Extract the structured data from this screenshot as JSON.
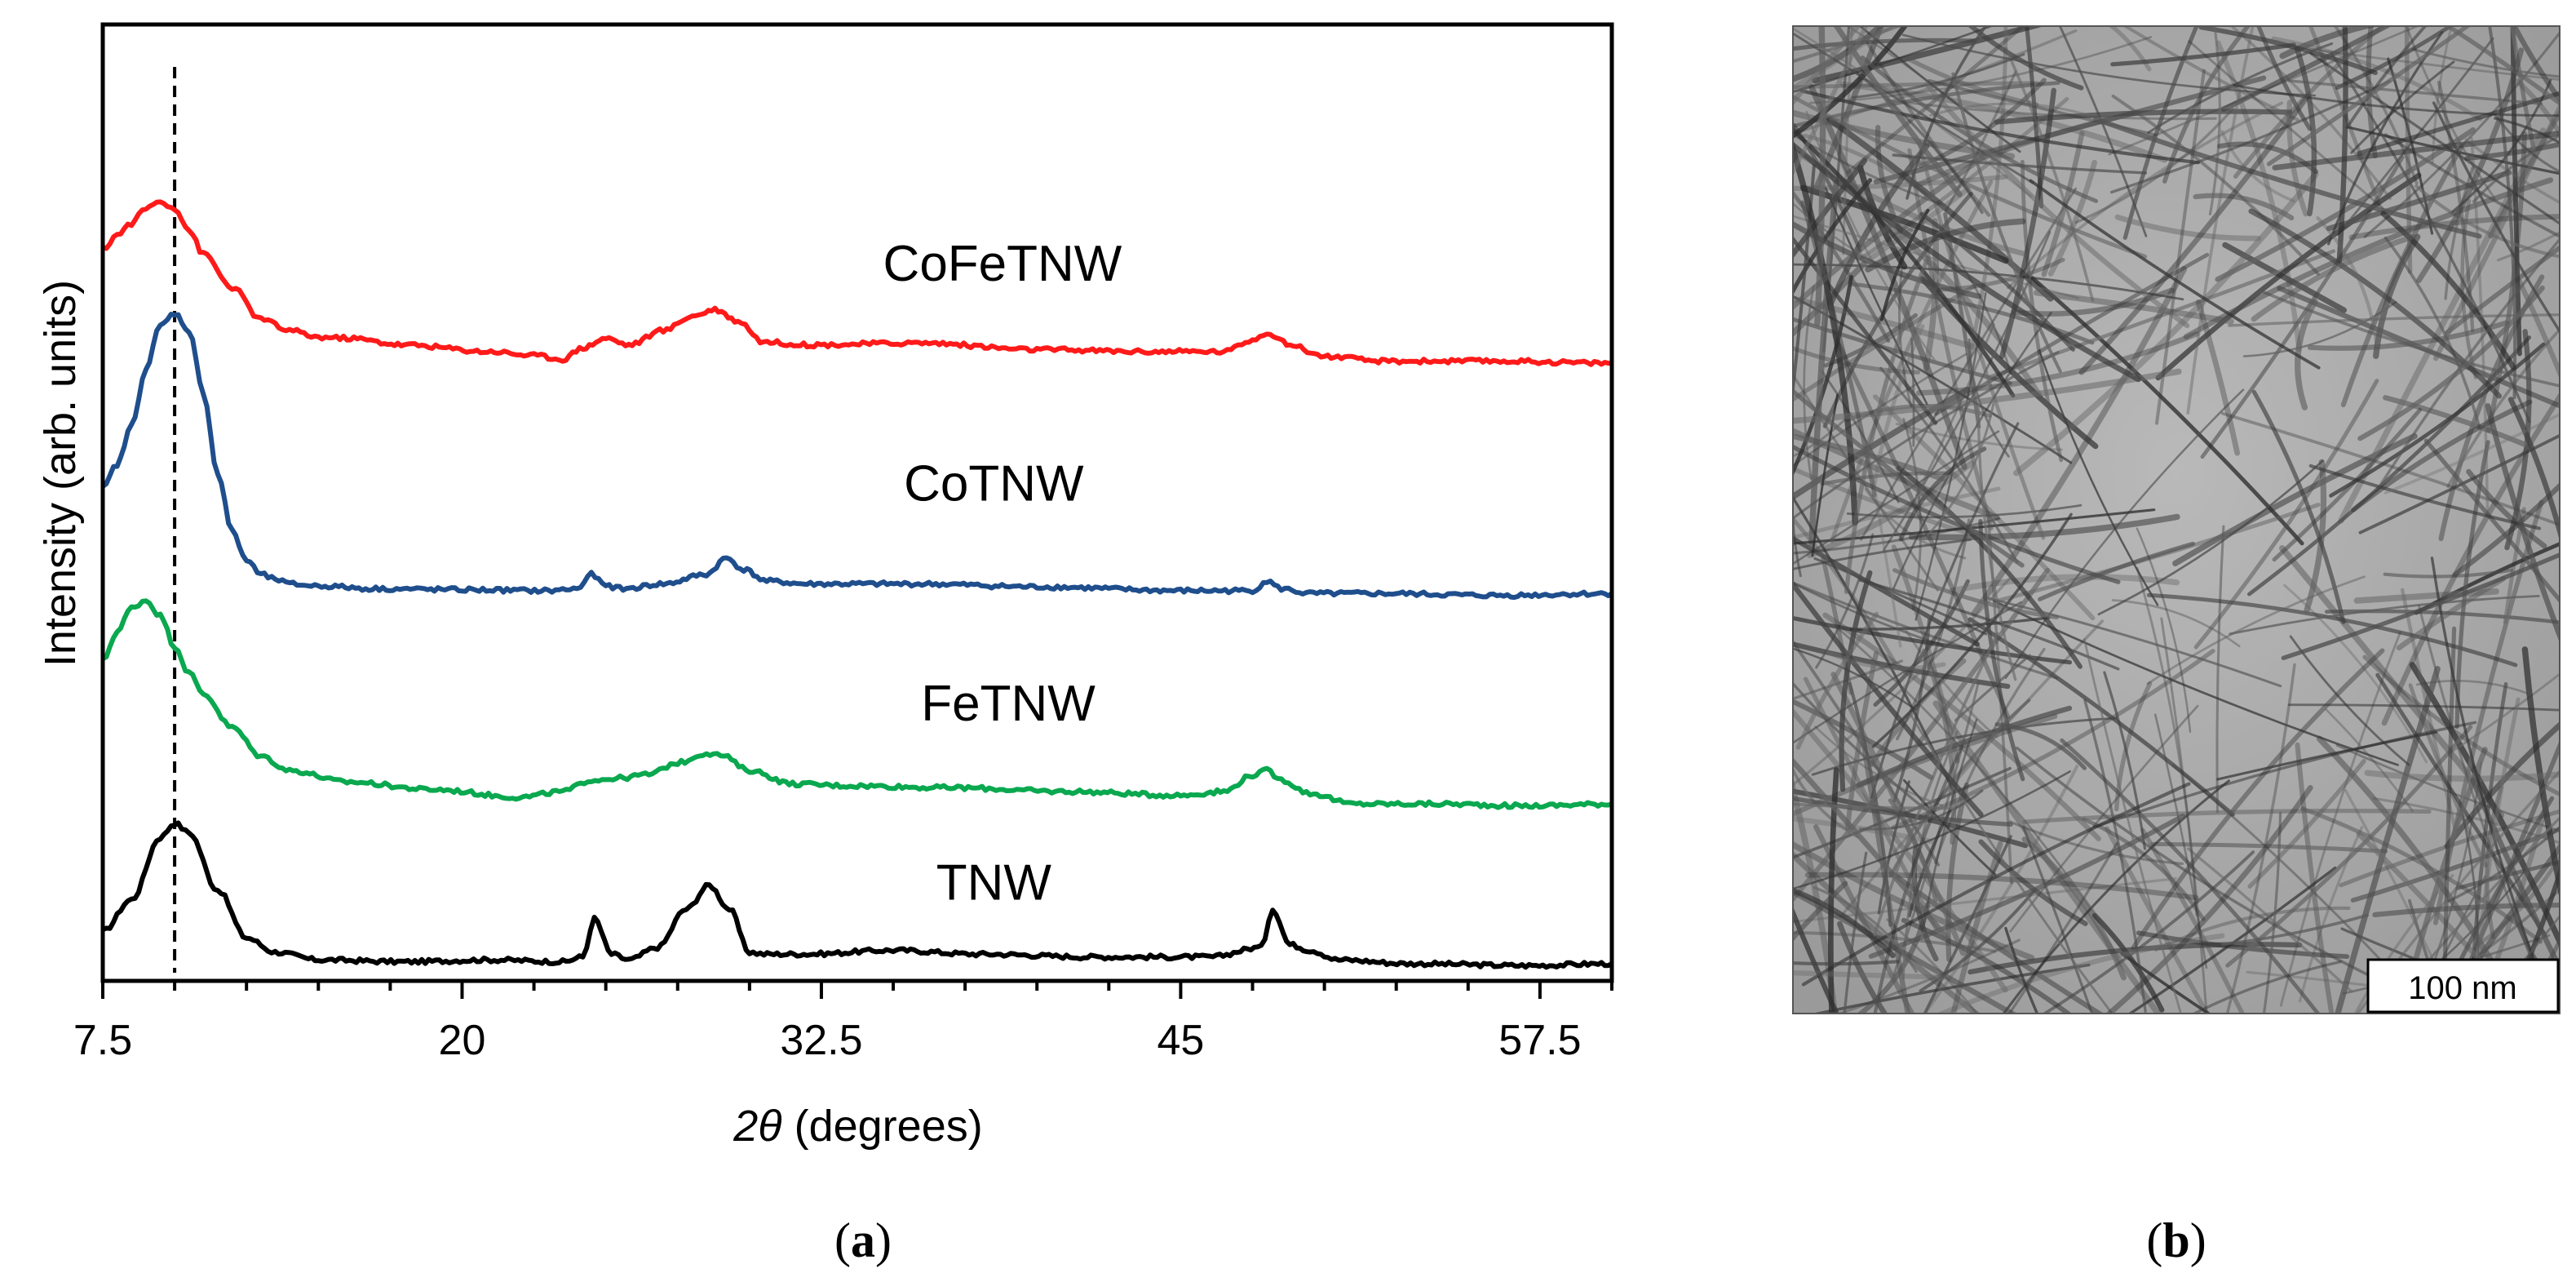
{
  "chart_data": {
    "type": "line",
    "title": "",
    "xlabel_symbol": "2θ",
    "xlabel_unit": " (degrees)",
    "ylabel": "Intensity (arb. units)",
    "xlim": [
      7.5,
      60.0
    ],
    "ylim": [
      0,
      100
    ],
    "xticks": [
      "7.5",
      "20",
      "32.5",
      "45",
      "57.5"
    ],
    "xtick_values": [
      7.5,
      20,
      32.5,
      45,
      57.5
    ],
    "minor_tick_step": 2.5,
    "reference_line_x": 10.0,
    "series": [
      {
        "name": "TNW",
        "color": "#000000",
        "label_x": 38.5,
        "label_y": 8.5,
        "x": [
          7.5,
          8.5,
          9.5,
          10.0,
          10.5,
          11.5,
          12.5,
          13.5,
          15.0,
          18.0,
          21.0,
          23.5,
          24.2,
          24.6,
          25.2,
          25.8,
          26.8,
          27.8,
          28.6,
          29.3,
          30.0,
          30.5,
          32.0,
          35.0,
          38.0,
          42.0,
          46.0,
          47.8,
          48.2,
          48.8,
          49.5,
          50.5,
          53.0,
          57.0,
          60.0
        ],
        "y": [
          5.2,
          8.5,
          15.0,
          16.5,
          15.5,
          9.5,
          4.5,
          3.0,
          2.2,
          2.0,
          2.2,
          2.0,
          2.5,
          6.5,
          2.8,
          2.2,
          3.5,
          7.5,
          10.0,
          7.5,
          3.0,
          2.8,
          2.8,
          3.2,
          2.8,
          2.5,
          2.5,
          3.5,
          7.5,
          3.8,
          3.2,
          2.2,
          1.8,
          1.6,
          1.8
        ]
      },
      {
        "name": "FeTNW",
        "color": "#0aa84f",
        "label_x": 39.0,
        "label_y": 27.2,
        "x": [
          7.5,
          8.0,
          8.5,
          9.0,
          9.5,
          10.0,
          10.5,
          11.0,
          12.0,
          13.0,
          14.0,
          16.0,
          19.0,
          22.0,
          23.5,
          24.5,
          25.5,
          26.5,
          27.5,
          28.5,
          29.0,
          30.0,
          31.5,
          33.5,
          37.0,
          41.0,
          45.0,
          46.5,
          47.5,
          48.0,
          48.5,
          49.5,
          51.0,
          54.0,
          57.0,
          60.0
        ],
        "y": [
          33.5,
          36.5,
          39.0,
          39.8,
          38.2,
          35.0,
          32.2,
          30.0,
          26.5,
          23.5,
          22.0,
          20.8,
          20.0,
          19.2,
          19.8,
          21.0,
          21.2,
          21.6,
          22.8,
          23.8,
          23.6,
          22.0,
          20.6,
          20.4,
          20.2,
          19.8,
          19.4,
          19.8,
          21.5,
          22.0,
          21.0,
          19.6,
          18.5,
          18.5,
          18.3,
          18.5
        ]
      },
      {
        "name": "CoTNW",
        "color": "#1f4e8c",
        "label_x": 38.5,
        "label_y": 50.2,
        "x": [
          7.5,
          8.0,
          8.5,
          9.0,
          9.5,
          10.0,
          10.5,
          11.0,
          11.5,
          12.0,
          12.5,
          13.0,
          13.5,
          14.0,
          15.0,
          17.0,
          20.0,
          23.0,
          24.0,
          24.5,
          25.0,
          25.6,
          27.0,
          28.5,
          29.2,
          29.8,
          30.6,
          32.0,
          36.0,
          40.0,
          45.0,
          47.5,
          48.0,
          48.5,
          49.5,
          52.0,
          56.0,
          60.0
        ],
        "y": [
          51.5,
          54.0,
          58.0,
          64.0,
          68.5,
          69.8,
          68.0,
          61.5,
          53.0,
          47.0,
          44.0,
          42.5,
          42.0,
          41.5,
          41.3,
          41.0,
          40.9,
          40.8,
          41.0,
          42.5,
          41.3,
          41.0,
          41.5,
          42.5,
          44.2,
          43.0,
          41.8,
          41.5,
          41.5,
          41.2,
          40.8,
          40.8,
          41.8,
          41.0,
          40.5,
          40.5,
          40.3,
          40.5
        ]
      },
      {
        "name": "CoFeTNW",
        "color": "#ff1a1a",
        "label_x": 38.8,
        "label_y": 73.2,
        "x": [
          7.5,
          8.0,
          8.5,
          9.0,
          9.5,
          10.0,
          10.5,
          11.0,
          12.0,
          13.0,
          14.0,
          15.0,
          16.0,
          18.0,
          21.0,
          22.5,
          23.5,
          24.2,
          25.0,
          25.8,
          27.0,
          28.0,
          28.8,
          29.6,
          30.5,
          32.0,
          36.0,
          40.0,
          44.0,
          46.5,
          47.5,
          48.0,
          48.8,
          50.0,
          52.0,
          56.0,
          60.0
        ],
        "y": [
          76.5,
          78.0,
          79.2,
          80.8,
          81.5,
          80.8,
          78.5,
          76.0,
          72.5,
          69.2,
          68.0,
          67.3,
          67.2,
          66.5,
          65.8,
          65.4,
          65.0,
          66.2,
          67.2,
          66.5,
          68.0,
          69.5,
          70.2,
          69.0,
          66.8,
          66.5,
          66.7,
          66.0,
          65.8,
          65.8,
          67.0,
          67.8,
          66.5,
          65.3,
          64.8,
          64.8,
          64.6
        ]
      }
    ]
  },
  "panels": {
    "a_label": "a",
    "b_label": "b"
  },
  "micrograph": {
    "scale_bar_label": "100 nm"
  }
}
